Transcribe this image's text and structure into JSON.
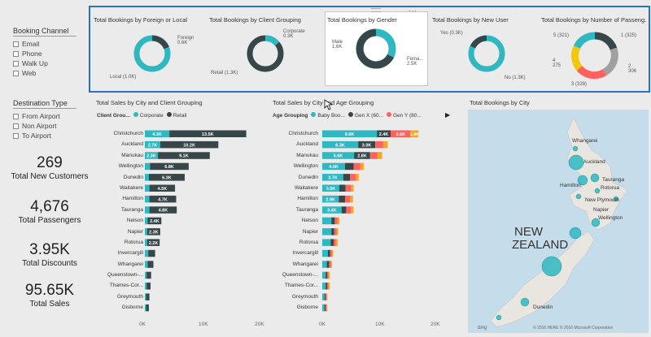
{
  "slicers": {
    "booking_channel": {
      "title": "Booking Channel",
      "items": [
        "Email",
        "Phone",
        "Walk Up",
        "Web"
      ]
    },
    "destination_type": {
      "title": "Destination Type",
      "items": [
        "From Airport",
        "Non Airport",
        "To Airport"
      ]
    }
  },
  "kpis": [
    {
      "value": "269",
      "label": "Total New Customers"
    },
    {
      "value": "4,676",
      "label": "Total Passengers"
    },
    {
      "value": "3.95K",
      "label": "Total Discounts"
    },
    {
      "value": "95.65K",
      "label": "Total Sales"
    }
  ],
  "colors": {
    "teal": "#2fb7c2",
    "dark": "#374649",
    "gray": "#a0a0a0",
    "yellow": "#f2c80f",
    "red": "#fd625e",
    "orange": "#f5a623",
    "highlight": "#2d6fc7"
  },
  "donuts": [
    {
      "title": "Total Bookings by Foreign or Local",
      "labels": [
        "Foreign\n0.6K",
        "Local (1.0K)"
      ]
    },
    {
      "title": "Total Bookings by Client Grouping",
      "labels": [
        "Corporate\n0.3K",
        "Retail (1.3K)"
      ]
    },
    {
      "title": "Total Bookings by Gender",
      "labels": [
        "Male\n1.6K",
        "Fema...\n2.5K"
      ]
    },
    {
      "title": "Total Bookings by New User",
      "labels": [
        "Yes (0.3K)",
        "No (1.3K)"
      ]
    },
    {
      "title": "Total Bookings by Number of Passeng...",
      "labels": [
        "5 (321)",
        "1 (325)",
        "4\n275",
        "2\n306",
        "3 (328)"
      ]
    }
  ],
  "chart_data": [
    {
      "type": "bar",
      "title": "Total Sales by City and Client Grouping",
      "legend_title": "Client Grou...",
      "categories": [
        "Christchurch",
        "Auckland",
        "Manukau",
        "Wellington",
        "Dunedin",
        "Waitakere",
        "Hamilton",
        "Tauranga",
        "Nelson",
        "Napier",
        "Rotorua",
        "Invercargill",
        "Whangarei",
        "Queenstown-...",
        "Thames-Cor...",
        "Greymouth",
        "Gisborne"
      ],
      "series": [
        {
          "name": "Corporate",
          "values": [
            4.3,
            2.7,
            2.3,
            0.9,
            0.7,
            0.8,
            0.8,
            0.8,
            0.5,
            0.4,
            0.4,
            0.6,
            0.5,
            0.3,
            0.3,
            0.2,
            0.2
          ]
        },
        {
          "name": "Retail",
          "values": [
            13.5,
            10.2,
            9.1,
            6.8,
            6.3,
            4.5,
            4.7,
            4.8,
            2.4,
            2.3,
            2.2,
            1.2,
            1.0,
            0.8,
            0.7,
            0.6,
            0.5
          ]
        }
      ],
      "data_labels": [
        [
          "4.3K",
          "13.5K"
        ],
        [
          "2.7K",
          "10.2K"
        ],
        [
          "2.3K",
          "9.1K"
        ],
        [
          "",
          "6.8K"
        ],
        [
          "",
          "6.3K"
        ],
        [
          "",
          "4.5K"
        ],
        [
          "",
          "4.7K"
        ],
        [
          "",
          "4.8K"
        ],
        [
          "",
          "2.4K"
        ],
        [
          "",
          "2.3K"
        ],
        [
          "",
          "2.2K"
        ],
        [
          "",
          ""
        ],
        [
          "",
          ""
        ],
        [
          "",
          ""
        ],
        [
          "",
          ""
        ],
        [
          "",
          ""
        ],
        [
          "",
          ""
        ]
      ],
      "xticks": [
        "0K",
        "10K",
        "20K"
      ],
      "xlim": [
        0,
        20
      ]
    },
    {
      "type": "bar",
      "title": "Total Sales by City and Age Grouping",
      "legend_title": "Age Grouping",
      "categories": [
        "Christchurch",
        "Auckland",
        "Manukau",
        "Wellington",
        "Dunedin",
        "Waitakere",
        "Hamilton",
        "Tauranga",
        "Nelson",
        "Napier",
        "Rotorua",
        "Invercargill",
        "Whangarei",
        "Queenstown-...",
        "Thames-Cor...",
        "Greymouth",
        "Gisborne"
      ],
      "series": [
        {
          "name": "Baby Boo...",
          "values": [
            9.6,
            6.3,
            5.6,
            4.0,
            3.7,
            3.0,
            2.9,
            3.4,
            1.6,
            1.6,
            1.5,
            1.0,
            0.8,
            0.6,
            0.6,
            0.4,
            0.4
          ]
        },
        {
          "name": "Gen X (60...",
          "values": [
            2.4,
            3.0,
            2.8,
            1.5,
            1.2,
            1.1,
            1.1,
            0.8,
            0.6,
            0.5,
            0.5,
            0.4,
            0.4,
            0.3,
            0.3,
            0.2,
            0.2
          ]
        },
        {
          "name": "Gen Y (80...",
          "values": [
            3.5,
            1.4,
            1.3,
            1.2,
            1.0,
            0.9,
            0.9,
            0.8,
            0.5,
            0.4,
            0.4,
            0.3,
            0.3,
            0.2,
            0.2,
            0.2,
            0.2
          ]
        },
        {
          "name": "",
          "values": [
            1.4,
            0.8,
            0.8,
            0.6,
            0.5,
            0.5,
            0.5,
            0.5,
            0.3,
            0.3,
            0.3,
            0.2,
            0.2,
            0.2,
            0.2,
            0.1,
            0.1
          ]
        }
      ],
      "data_labels": [
        [
          "9.6K",
          "2.4K",
          "3.5K",
          "1.4K"
        ],
        [
          "6.3K",
          "3.0K",
          "",
          ""
        ],
        [
          "5.6K",
          "2.8K",
          "",
          ""
        ],
        [
          "4.0K",
          "",
          "",
          ""
        ],
        [
          "3.7K",
          "",
          "",
          ""
        ],
        [
          "3.0K",
          "",
          "",
          ""
        ],
        [
          "2.9K",
          "",
          "",
          ""
        ],
        [
          "3.4K",
          "",
          "",
          ""
        ],
        [
          "",
          "",
          "",
          ""
        ],
        [
          "",
          "",
          "",
          ""
        ],
        [
          "",
          "",
          "",
          ""
        ],
        [
          "",
          "",
          "",
          ""
        ],
        [
          "",
          "",
          "",
          ""
        ],
        [
          "",
          "",
          "",
          ""
        ],
        [
          "",
          "",
          "",
          ""
        ],
        [
          "",
          "",
          "",
          ""
        ],
        [
          "",
          "",
          "",
          ""
        ]
      ],
      "xticks": [
        "0K",
        "10K",
        "20K"
      ],
      "xlim": [
        0,
        20
      ]
    }
  ],
  "map": {
    "title": "Total Bookings by City",
    "country_label": "NEW\nZEALAND",
    "places": [
      "Auckland",
      "Hamilton",
      "Tauranga",
      "New Plymouth",
      "Napier",
      "Wellington",
      "Dunedin",
      "Whangarei",
      "Rotorua"
    ],
    "copyright": "© 2016 HERE   © 2016 Microsoft Corporation",
    "brand": "bing"
  }
}
